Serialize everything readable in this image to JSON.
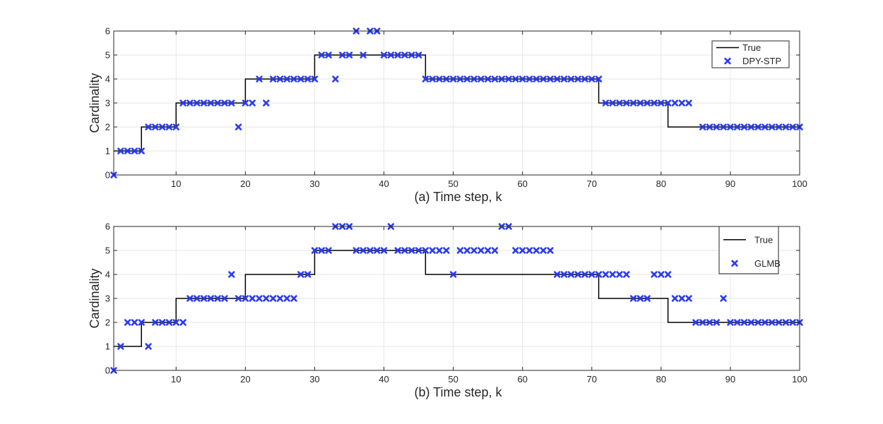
{
  "colors": {
    "true_line": "#000000",
    "marker": "#2b3bf0",
    "grid": "#e6e6e6",
    "axis": "#262626"
  },
  "chart_data": [
    {
      "type": "line",
      "xlabel": "(a)  Time step, k",
      "ylabel": "Cardinality",
      "xlim": [
        1,
        100
      ],
      "ylim": [
        0,
        6
      ],
      "xticks": [
        10,
        20,
        30,
        40,
        50,
        60,
        70,
        80,
        90,
        100
      ],
      "yticks": [
        0,
        1,
        2,
        3,
        4,
        5,
        6
      ],
      "grid": true,
      "legend_position": "top-right",
      "series": [
        {
          "name": "True",
          "kind": "step",
          "x": [
            1,
            2,
            3,
            4,
            5,
            6,
            7,
            8,
            9,
            10,
            11,
            12,
            13,
            14,
            15,
            16,
            17,
            18,
            19,
            20,
            21,
            22,
            23,
            24,
            25,
            26,
            27,
            28,
            29,
            30,
            31,
            32,
            33,
            34,
            35,
            36,
            37,
            38,
            39,
            40,
            41,
            42,
            43,
            44,
            45,
            46,
            47,
            48,
            49,
            50,
            51,
            52,
            53,
            54,
            55,
            56,
            57,
            58,
            59,
            60,
            61,
            62,
            63,
            64,
            65,
            66,
            67,
            68,
            69,
            70,
            71,
            72,
            73,
            74,
            75,
            76,
            77,
            78,
            79,
            80,
            81,
            82,
            83,
            84,
            85,
            86,
            87,
            88,
            89,
            90,
            91,
            92,
            93,
            94,
            95,
            96,
            97,
            98,
            99,
            100
          ],
          "y": [
            1,
            1,
            1,
            1,
            2,
            2,
            2,
            2,
            2,
            3,
            3,
            3,
            3,
            3,
            3,
            3,
            3,
            3,
            3,
            4,
            4,
            4,
            4,
            4,
            4,
            4,
            4,
            4,
            4,
            5,
            5,
            5,
            5,
            5,
            5,
            5,
            5,
            5,
            5,
            5,
            5,
            5,
            5,
            5,
            5,
            4,
            4,
            4,
            4,
            4,
            4,
            4,
            4,
            4,
            4,
            4,
            4,
            4,
            4,
            4,
            4,
            4,
            4,
            4,
            4,
            4,
            4,
            4,
            4,
            4,
            3,
            3,
            3,
            3,
            3,
            3,
            3,
            3,
            3,
            3,
            2,
            2,
            2,
            2,
            2,
            2,
            2,
            2,
            2,
            2,
            2,
            2,
            2,
            2,
            2,
            2,
            2,
            2,
            2,
            2
          ]
        },
        {
          "name": "DPY-STP",
          "kind": "marker",
          "x": [
            1,
            2,
            3,
            4,
            5,
            6,
            7,
            8,
            9,
            10,
            11,
            12,
            13,
            14,
            15,
            16,
            17,
            18,
            19,
            20,
            21,
            22,
            23,
            24,
            25,
            26,
            27,
            28,
            29,
            30,
            31,
            32,
            33,
            34,
            35,
            36,
            37,
            38,
            39,
            40,
            41,
            42,
            43,
            44,
            45,
            46,
            47,
            48,
            49,
            50,
            51,
            52,
            53,
            54,
            55,
            56,
            57,
            58,
            59,
            60,
            61,
            62,
            63,
            64,
            65,
            66,
            67,
            68,
            69,
            70,
            71,
            72,
            73,
            74,
            75,
            76,
            77,
            78,
            79,
            80,
            81,
            82,
            83,
            84,
            86,
            87,
            88,
            89,
            90,
            91,
            92,
            93,
            94,
            95,
            96,
            97,
            98,
            99,
            100
          ],
          "y": [
            0,
            1,
            1,
            1,
            1,
            2,
            2,
            2,
            2,
            2,
            3,
            3,
            3,
            3,
            3,
            3,
            3,
            3,
            2,
            3,
            3,
            4,
            3,
            4,
            4,
            4,
            4,
            4,
            4,
            4,
            5,
            5,
            4,
            5,
            5,
            6,
            5,
            6,
            6,
            5,
            5,
            5,
            5,
            5,
            5,
            4,
            4,
            4,
            4,
            4,
            4,
            4,
            4,
            4,
            4,
            4,
            4,
            4,
            4,
            4,
            4,
            4,
            4,
            4,
            4,
            4,
            4,
            4,
            4,
            4,
            4,
            3,
            3,
            3,
            3,
            3,
            3,
            3,
            3,
            3,
            3,
            3,
            3,
            3,
            2,
            2,
            2,
            2,
            2,
            2,
            2,
            2,
            2,
            2,
            2,
            2,
            2,
            2,
            2
          ]
        }
      ]
    },
    {
      "type": "line",
      "xlabel": "(b) Time step, k",
      "ylabel": "Cardinality",
      "xlim": [
        1,
        100
      ],
      "ylim": [
        0,
        6
      ],
      "xticks": [
        10,
        20,
        30,
        40,
        50,
        60,
        70,
        80,
        90,
        100
      ],
      "yticks": [
        0,
        1,
        2,
        3,
        4,
        5,
        6
      ],
      "grid": true,
      "legend_position": "top-right",
      "series": [
        {
          "name": "True",
          "kind": "step",
          "x": [
            1,
            2,
            3,
            4,
            5,
            6,
            7,
            8,
            9,
            10,
            11,
            12,
            13,
            14,
            15,
            16,
            17,
            18,
            19,
            20,
            21,
            22,
            23,
            24,
            25,
            26,
            27,
            28,
            29,
            30,
            31,
            32,
            33,
            34,
            35,
            36,
            37,
            38,
            39,
            40,
            41,
            42,
            43,
            44,
            45,
            46,
            47,
            48,
            49,
            50,
            51,
            52,
            53,
            54,
            55,
            56,
            57,
            58,
            59,
            60,
            61,
            62,
            63,
            64,
            65,
            66,
            67,
            68,
            69,
            70,
            71,
            72,
            73,
            74,
            75,
            76,
            77,
            78,
            79,
            80,
            81,
            82,
            83,
            84,
            85,
            86,
            87,
            88,
            89,
            90,
            91,
            92,
            93,
            94,
            95,
            96,
            97,
            98,
            99,
            100
          ],
          "y": [
            1,
            1,
            1,
            1,
            2,
            2,
            2,
            2,
            2,
            3,
            3,
            3,
            3,
            3,
            3,
            3,
            3,
            3,
            3,
            4,
            4,
            4,
            4,
            4,
            4,
            4,
            4,
            4,
            4,
            5,
            5,
            5,
            5,
            5,
            5,
            5,
            5,
            5,
            5,
            5,
            5,
            5,
            5,
            5,
            5,
            4,
            4,
            4,
            4,
            4,
            4,
            4,
            4,
            4,
            4,
            4,
            4,
            4,
            4,
            4,
            4,
            4,
            4,
            4,
            4,
            4,
            4,
            4,
            4,
            4,
            3,
            3,
            3,
            3,
            3,
            3,
            3,
            3,
            3,
            3,
            2,
            2,
            2,
            2,
            2,
            2,
            2,
            2,
            2,
            2,
            2,
            2,
            2,
            2,
            2,
            2,
            2,
            2,
            2,
            2
          ]
        },
        {
          "name": "GLMB",
          "kind": "marker",
          "x": [
            1,
            2,
            3,
            4,
            5,
            6,
            7,
            8,
            9,
            10,
            11,
            12,
            13,
            14,
            15,
            16,
            17,
            18,
            19,
            20,
            21,
            22,
            23,
            24,
            25,
            26,
            27,
            28,
            29,
            30,
            31,
            32,
            33,
            34,
            35,
            36,
            37,
            38,
            39,
            40,
            41,
            42,
            43,
            44,
            45,
            46,
            47,
            48,
            49,
            50,
            51,
            52,
            53,
            54,
            55,
            56,
            57,
            58,
            59,
            60,
            61,
            62,
            63,
            64,
            65,
            66,
            67,
            68,
            69,
            70,
            71,
            72,
            73,
            74,
            75,
            76,
            77,
            78,
            79,
            80,
            81,
            82,
            83,
            84,
            85,
            86,
            87,
            88,
            89,
            90,
            91,
            92,
            93,
            94,
            95,
            96,
            97,
            98,
            99,
            100
          ],
          "y": [
            0,
            1,
            2,
            2,
            2,
            1,
            2,
            2,
            2,
            2,
            2,
            3,
            3,
            3,
            3,
            3,
            3,
            4,
            3,
            3,
            3,
            3,
            3,
            3,
            3,
            3,
            3,
            4,
            4,
            5,
            5,
            5,
            6,
            6,
            6,
            5,
            5,
            5,
            5,
            5,
            6,
            5,
            5,
            5,
            5,
            5,
            5,
            5,
            5,
            4,
            5,
            5,
            5,
            5,
            5,
            5,
            6,
            6,
            5,
            5,
            5,
            5,
            5,
            5,
            4,
            4,
            4,
            4,
            4,
            4,
            4,
            4,
            4,
            4,
            4,
            3,
            3,
            3,
            4,
            4,
            4,
            3,
            3,
            3,
            2,
            2,
            2,
            2,
            3,
            2,
            2,
            2,
            2,
            2,
            2,
            2,
            2,
            2,
            2,
            2
          ]
        }
      ]
    }
  ]
}
